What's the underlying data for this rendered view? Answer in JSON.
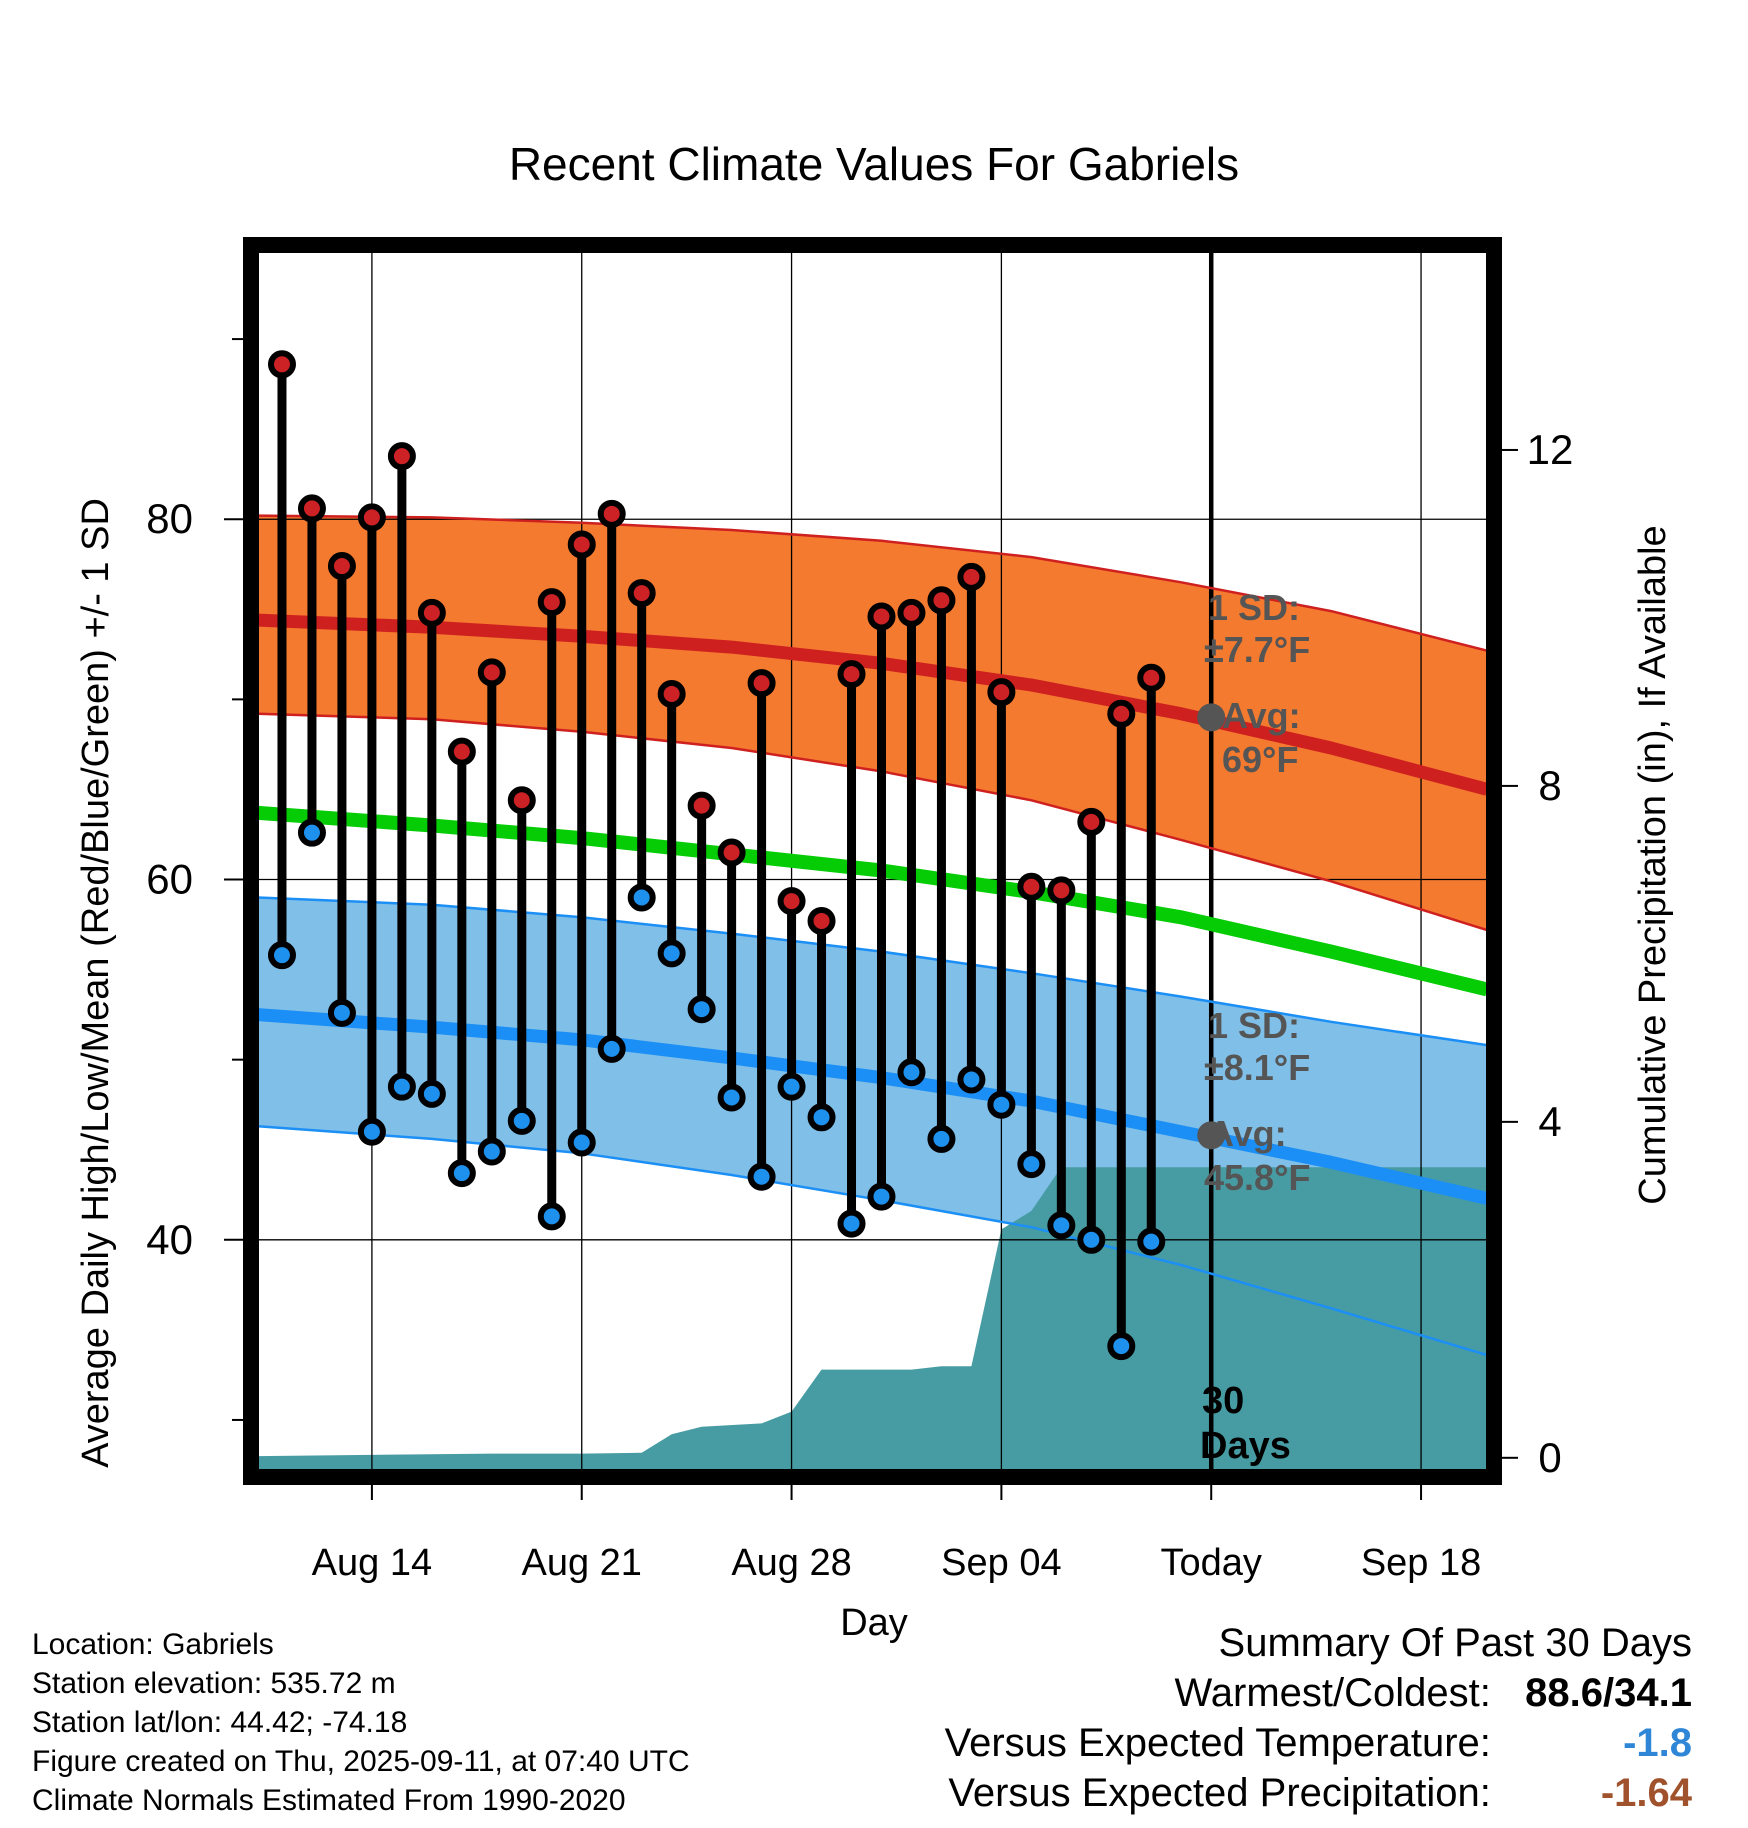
{
  "chart_data": {
    "type": "line",
    "title": "Recent Climate Values For Gabriels",
    "xlabel": "Day",
    "ylabel": "Average Daily High/Low/Mean (Red/Blue/Green) +/- 1 SD",
    "y2label": "Cumulative Precipitation (in), If Available",
    "x_ticks": [
      "Aug 14",
      "Aug 21",
      "Aug 28",
      "Sep 04",
      "Today",
      "Sep 18"
    ],
    "x_tick_day": [
      3,
      10,
      17,
      24,
      31,
      38
    ],
    "xlim": [
      -0.8,
      40.2
    ],
    "ylim": [
      26.5,
      95.5
    ],
    "y_ticks": [
      40,
      60,
      80
    ],
    "y_minor_ticks": [
      30,
      50,
      70,
      90
    ],
    "y2lim": [
      -0.3,
      14.5
    ],
    "y2_ticks": [
      0,
      4,
      8,
      12
    ],
    "grid": true,
    "today_day": 31,
    "observed": {
      "day": [
        0,
        1,
        2,
        3,
        4,
        5,
        6,
        7,
        8,
        9,
        10,
        11,
        12,
        13,
        14,
        15,
        16,
        17,
        18,
        19,
        20,
        21,
        22,
        23,
        24,
        25,
        26,
        27,
        28,
        29
      ],
      "high": [
        88.6,
        80.6,
        77.4,
        80.1,
        83.5,
        74.8,
        67.1,
        71.5,
        64.4,
        75.4,
        78.6,
        80.3,
        75.9,
        70.3,
        64.1,
        61.5,
        70.9,
        58.8,
        57.7,
        71.4,
        74.6,
        74.8,
        75.5,
        76.8,
        70.4,
        59.6,
        59.4,
        63.2,
        69.2,
        71.2
      ],
      "low": [
        55.8,
        62.6,
        52.6,
        46.0,
        48.5,
        48.1,
        43.7,
        44.9,
        46.6,
        41.3,
        45.4,
        50.6,
        59.0,
        55.9,
        52.8,
        47.9,
        43.5,
        48.5,
        46.8,
        40.9,
        42.4,
        49.3,
        45.6,
        48.9,
        47.5,
        44.2,
        40.8,
        40.0,
        34.1,
        39.9
      ]
    },
    "normals": {
      "day": [
        -0.8,
        5,
        10,
        15,
        20,
        25,
        30,
        35,
        40.2
      ],
      "high_mean": [
        74.4,
        74.0,
        73.5,
        72.9,
        72.0,
        70.8,
        69.2,
        67.3,
        65.0
      ],
      "high_upper": [
        80.2,
        80.1,
        79.8,
        79.4,
        78.8,
        77.9,
        76.5,
        74.9,
        72.7
      ],
      "high_lower": [
        69.2,
        68.9,
        68.2,
        67.3,
        66.0,
        64.4,
        62.2,
        59.9,
        57.2
      ],
      "mean": [
        63.7,
        63.0,
        62.3,
        61.4,
        60.5,
        59.3,
        57.9,
        56.0,
        53.9
      ],
      "low_mean": [
        52.5,
        51.8,
        51.1,
        50.1,
        49.0,
        47.7,
        46.0,
        44.3,
        42.3
      ],
      "low_upper": [
        59.0,
        58.6,
        57.9,
        57.0,
        56.0,
        54.8,
        53.5,
        52.1,
        50.8
      ],
      "low_lower": [
        46.3,
        45.6,
        44.8,
        43.6,
        42.2,
        40.7,
        38.6,
        36.2,
        33.6
      ]
    },
    "precipitation": {
      "day": [
        -0.8,
        7,
        10,
        12,
        13,
        14,
        16,
        17,
        18,
        19,
        21,
        22,
        23,
        24,
        25,
        26,
        40.2
      ],
      "cumulative": [
        0.02,
        0.05,
        0.05,
        0.06,
        0.28,
        0.37,
        0.41,
        0.55,
        1.05,
        1.05,
        1.05,
        1.09,
        1.09,
        2.72,
        2.94,
        3.46,
        3.46
      ]
    },
    "annotations": {
      "high_sd_label": "1 SD:",
      "high_sd_value": "±7.7°F",
      "high_avg_label": "Avg:",
      "high_avg_value": "69°F",
      "low_sd_label": "1 SD:",
      "low_sd_value": "±8.1°F",
      "low_avg_label": "Avg:",
      "low_avg_value": "45.8°F",
      "period_number": "30",
      "period_unit": "Days"
    },
    "colors": {
      "high_band": "#f47a2f",
      "high_line": "#cf2020",
      "mean_line": "#05cc05",
      "low_band": "#80bfe8",
      "low_line": "#1b8ff5",
      "precip_fill": "#479ca3",
      "high_dot": "#cc2125",
      "low_dot": "#1e90ee",
      "annotation_text": "#555555"
    }
  },
  "metadata_text": {
    "location": "Location: Gabriels",
    "elevation": "Station elevation: 535.72 m",
    "latlon": "Station lat/lon: 44.42; -74.18",
    "created": "Figure created on Thu, 2025-09-11, at 07:40 UTC",
    "normals": "Climate Normals Estimated From 1990-2020"
  },
  "summary": {
    "heading": "Summary Of Past 30 Days",
    "warmest_coldest_label": "Warmest/Coldest:",
    "warmest_coldest_value": "88.6/34.1",
    "temp_label": "Versus Expected Temperature:",
    "temp_value": "-1.8",
    "temp_color": "#2f86d6",
    "precip_label": "Versus Expected Precipitation:",
    "precip_value": "-1.64",
    "precip_color": "#a0522d"
  }
}
